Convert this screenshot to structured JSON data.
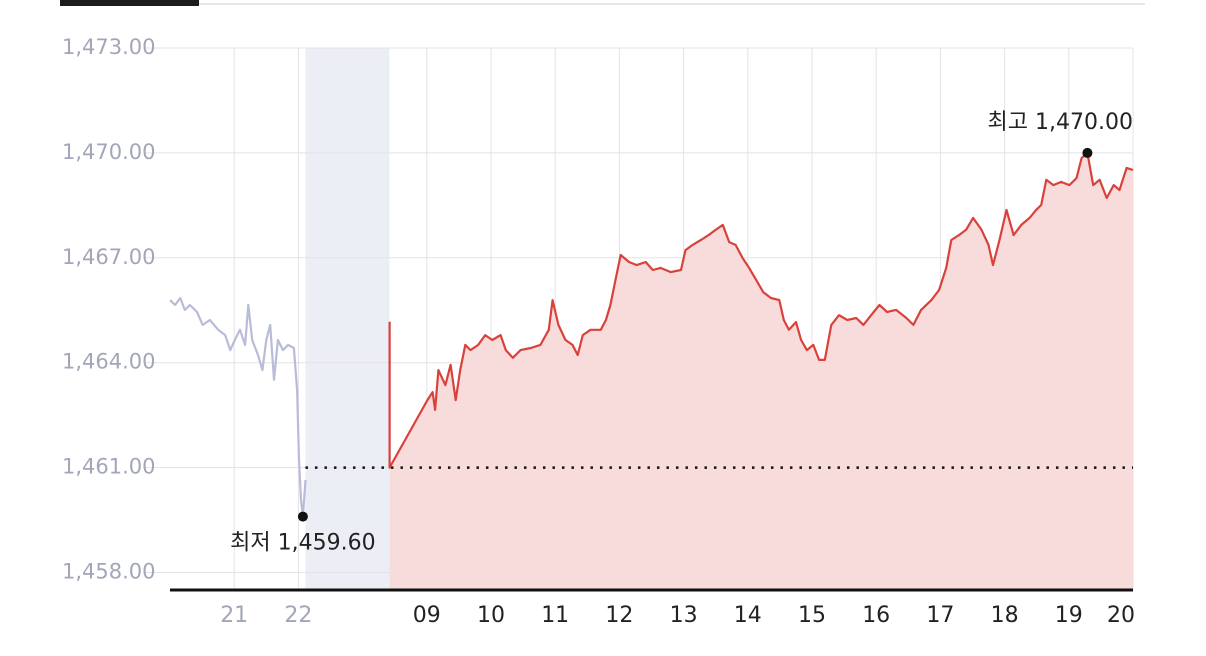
{
  "chart_data": {
    "type": "line",
    "ylim": [
      1457.5,
      1473
    ],
    "yticks": [
      {
        "value": 1458,
        "label": "1,458.00"
      },
      {
        "value": 1461,
        "label": "1,461.00"
      },
      {
        "value": 1464,
        "label": "1,464.00"
      },
      {
        "value": 1467,
        "label": "1,467.00"
      },
      {
        "value": 1470,
        "label": "1,470.00"
      },
      {
        "value": 1473,
        "label": "1,473.00"
      }
    ],
    "xlim": [
      0,
      15
    ],
    "xticks": [
      {
        "value": 1,
        "label": "21"
      },
      {
        "value": 2,
        "label": "22"
      },
      {
        "value": 4,
        "label": "09"
      },
      {
        "value": 5,
        "label": "10"
      },
      {
        "value": 6,
        "label": "11"
      },
      {
        "value": 7,
        "label": "12"
      },
      {
        "value": 8,
        "label": "13"
      },
      {
        "value": 9,
        "label": "14"
      },
      {
        "value": 10,
        "label": "15"
      },
      {
        "value": 11,
        "label": "16"
      },
      {
        "value": 12,
        "label": "17"
      },
      {
        "value": 13,
        "label": "18"
      },
      {
        "value": 14,
        "label": "19"
      },
      {
        "value": 15,
        "label": "20"
      }
    ],
    "grid": true,
    "shaded_range": [
      2.11,
      3.42
    ],
    "baseline": 1461.0,
    "series": [
      {
        "color": "#b9bcd8",
        "fill": false,
        "x": [
          0,
          0.08,
          0.16,
          0.23,
          0.31,
          0.42,
          0.51,
          0.62,
          0.75,
          0.86,
          0.94,
          1.01,
          1.09,
          1.17,
          1.22,
          1.28,
          1.37,
          1.44,
          1.5,
          1.56,
          1.62,
          1.68,
          1.76,
          1.84,
          1.93,
          1.98,
          2.01,
          2.04,
          2.07,
          2.11
        ],
        "values": [
          1465.79,
          1465.65,
          1465.85,
          1465.51,
          1465.65,
          1465.45,
          1465.08,
          1465.22,
          1464.94,
          1464.79,
          1464.36,
          1464.65,
          1464.94,
          1464.51,
          1465.65,
          1464.65,
          1464.22,
          1463.79,
          1464.65,
          1465.08,
          1463.51,
          1464.65,
          1464.36,
          1464.51,
          1464.42,
          1463.22,
          1461.22,
          1460.07,
          1459.6,
          1460.65
        ]
      },
      {
        "color": "#d9423b",
        "fill": "#f8dcdc",
        "x": [
          3.42,
          3.42,
          4.01,
          4.09,
          4.13,
          4.18,
          4.29,
          4.37,
          4.45,
          4.52,
          4.6,
          4.68,
          4.8,
          4.91,
          5.02,
          5.15,
          5.23,
          5.34,
          5.46,
          5.62,
          5.77,
          5.9,
          5.96,
          6.05,
          6.16,
          6.27,
          6.35,
          6.43,
          6.55,
          6.71,
          6.79,
          6.86,
          6.94,
          7.02,
          7.15,
          7.27,
          7.41,
          7.52,
          7.64,
          7.8,
          7.96,
          8.03,
          8.14,
          8.27,
          8.39,
          8.5,
          8.61,
          8.71,
          8.81,
          8.92,
          9.02,
          9.13,
          9.24,
          9.36,
          9.49,
          9.56,
          9.64,
          9.75,
          9.83,
          9.92,
          10.02,
          10.11,
          10.2,
          10.3,
          10.42,
          10.55,
          10.69,
          10.8,
          10.92,
          11.05,
          11.17,
          11.31,
          11.47,
          11.58,
          11.7,
          11.86,
          11.98,
          12.09,
          12.17,
          12.29,
          12.4,
          12.51,
          12.64,
          12.75,
          12.82,
          12.92,
          13.03,
          13.14,
          13.26,
          13.39,
          13.49,
          13.57,
          13.65,
          13.76,
          13.88,
          14.01,
          14.12,
          14.2,
          14.29,
          14.38,
          14.48,
          14.59,
          14.7,
          14.79,
          14.9,
          15
        ],
        "values": [
          1465.17,
          1461.0,
          1462.93,
          1463.16,
          1462.65,
          1463.79,
          1463.36,
          1463.94,
          1462.93,
          1463.79,
          1464.51,
          1464.36,
          1464.51,
          1464.79,
          1464.65,
          1464.79,
          1464.36,
          1464.14,
          1464.36,
          1464.42,
          1464.51,
          1464.94,
          1465.79,
          1465.08,
          1464.65,
          1464.51,
          1464.22,
          1464.79,
          1464.94,
          1464.94,
          1465.22,
          1465.65,
          1466.37,
          1467.08,
          1466.88,
          1466.79,
          1466.88,
          1466.65,
          1466.71,
          1466.59,
          1466.65,
          1467.22,
          1467.37,
          1467.51,
          1467.65,
          1467.8,
          1467.94,
          1467.45,
          1467.37,
          1466.99,
          1466.71,
          1466.37,
          1466.02,
          1465.85,
          1465.79,
          1465.22,
          1464.94,
          1465.16,
          1464.65,
          1464.36,
          1464.51,
          1464.08,
          1464.08,
          1465.08,
          1465.36,
          1465.22,
          1465.28,
          1465.08,
          1465.36,
          1465.65,
          1465.45,
          1465.51,
          1465.28,
          1465.08,
          1465.51,
          1465.79,
          1466.08,
          1466.71,
          1467.51,
          1467.65,
          1467.8,
          1468.14,
          1467.8,
          1467.37,
          1466.79,
          1467.51,
          1468.37,
          1467.65,
          1467.94,
          1468.14,
          1468.37,
          1468.51,
          1469.23,
          1469.08,
          1469.17,
          1469.08,
          1469.28,
          1469.85,
          1470.0,
          1469.08,
          1469.23,
          1468.71,
          1469.08,
          1468.94,
          1469.57,
          1469.51
        ]
      }
    ],
    "annotations": [
      {
        "text": "최고 1,470.00",
        "x": 14.29,
        "y": 1470.0
      },
      {
        "text": "최저 1,459.60",
        "x": 2.07,
        "y": 1459.6
      }
    ]
  }
}
